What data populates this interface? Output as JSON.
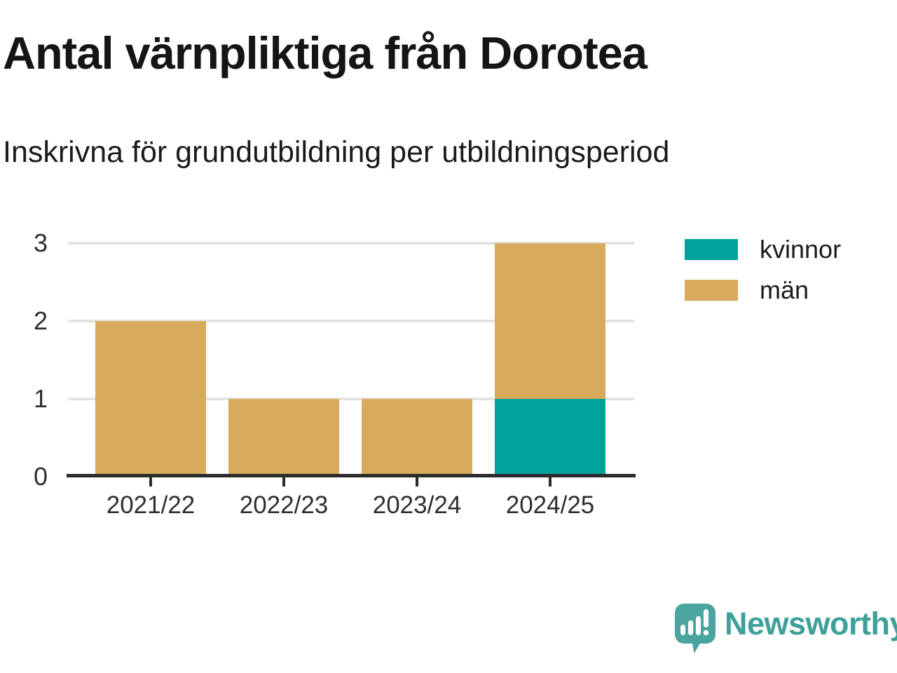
{
  "header": {
    "title": "Antal värnpliktiga från Dorotea",
    "subtitle": "Inskrivna för grundutbildning per utbildningsperiod"
  },
  "chart_data": {
    "type": "bar",
    "stacked": true,
    "title": "Antal värnpliktiga från Dorotea",
    "subtitle": "Inskrivna för grundutbildning per utbildningsperiod",
    "categories": [
      "2021/22",
      "2022/23",
      "2023/24",
      "2024/25"
    ],
    "series": [
      {
        "name": "kvinnor",
        "color": "#00A39B",
        "values": [
          0,
          0,
          0,
          1
        ]
      },
      {
        "name": "män",
        "color": "#D8AB5C",
        "values": [
          2,
          1,
          1,
          2
        ]
      }
    ],
    "xlabel": "",
    "ylabel": "",
    "ylim": [
      0,
      3
    ],
    "yticks": [
      0,
      1,
      2,
      3
    ],
    "grid": true,
    "legend_position": "top-right"
  },
  "legend": {
    "items": [
      {
        "label": "kvinnor",
        "color": "#00A39B"
      },
      {
        "label": "män",
        "color": "#D8AB5C"
      }
    ]
  },
  "colors": {
    "kvinnor": "#00A39B",
    "man": "#D8AB5C",
    "axis": "#2b2b2b",
    "gridline": "#e3e3e3",
    "brand_teal": "#3FA09A",
    "logo_teal": "#4BA49F"
  },
  "footer": {
    "brand": "Newsworthy"
  }
}
